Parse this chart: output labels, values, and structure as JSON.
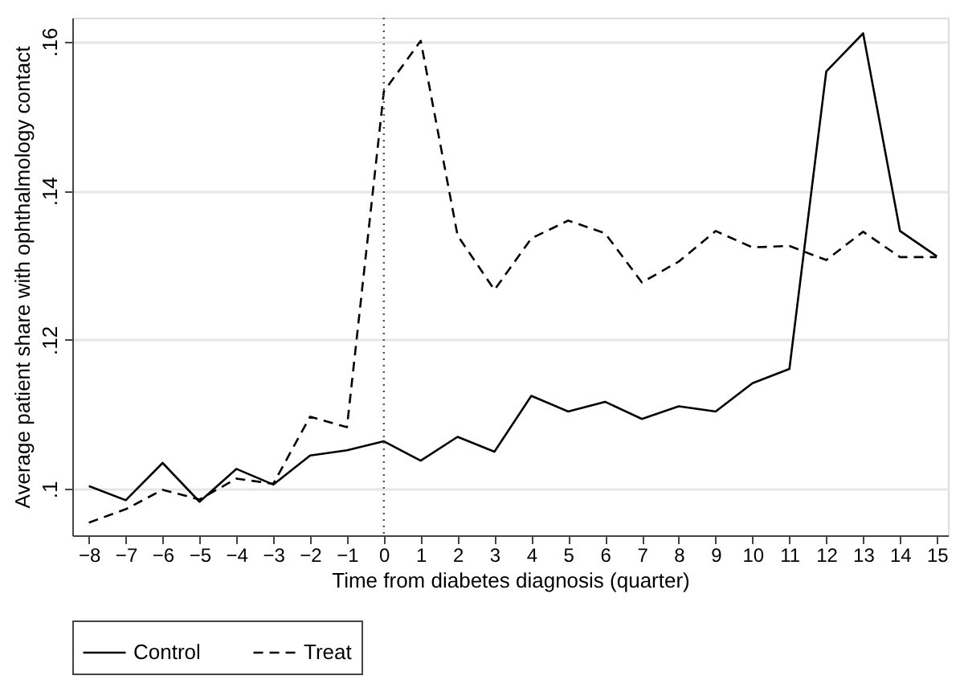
{
  "chart_data": {
    "type": "line",
    "xlabel": "Time from diabetes diagnosis (quarter)",
    "ylabel": "Average patient share with ophthalmology contact",
    "x": [
      -8,
      -7,
      -6,
      -5,
      -4,
      -3,
      -2,
      -1,
      0,
      1,
      2,
      3,
      4,
      5,
      6,
      7,
      8,
      9,
      10,
      11,
      12,
      13,
      14,
      15
    ],
    "series": [
      {
        "name": "Control",
        "color": "#000000",
        "line_style": "solid",
        "values": [
          0.1004,
          0.0985,
          0.1035,
          0.0983,
          0.1027,
          0.1006,
          0.1045,
          0.1052,
          0.1064,
          0.1038,
          0.107,
          0.105,
          0.1125,
          0.1104,
          0.1117,
          0.1094,
          0.1111,
          0.1104,
          0.1142,
          0.1161,
          0.156,
          0.1611,
          0.1346,
          0.1312
        ]
      },
      {
        "name": "Treat",
        "color": "#000000",
        "line_style": "dashed",
        "values": [
          0.0955,
          0.0973,
          0.0999,
          0.0986,
          0.1014,
          0.1007,
          0.1097,
          0.1083,
          0.1533,
          0.1601,
          0.134,
          0.1267,
          0.1336,
          0.136,
          0.1343,
          0.1277,
          0.1305,
          0.1346,
          0.1324,
          0.1326,
          0.1307,
          0.1345,
          0.1311,
          0.1311
        ]
      }
    ],
    "xlim": [
      -8.45,
      15.3
    ],
    "xticks": [
      -8,
      -7,
      -6,
      -5,
      -4,
      -3,
      -2,
      -1,
      0,
      1,
      2,
      3,
      4,
      5,
      6,
      7,
      8,
      9,
      10,
      11,
      12,
      13,
      14,
      15
    ],
    "ylim": [
      0.0938,
      0.1632
    ],
    "yticks": [
      {
        "value": 0.1,
        "label": ".1"
      },
      {
        "value": 0.12,
        "label": ".12"
      },
      {
        "value": 0.14,
        "label": ".14"
      },
      {
        "value": 0.16,
        "label": ".16"
      }
    ],
    "ref_lines": [
      {
        "axis": "x",
        "value": 0,
        "label": null,
        "color": "#555555",
        "line_style": "dotted"
      }
    ],
    "grid": "y",
    "legend": "bottom"
  }
}
